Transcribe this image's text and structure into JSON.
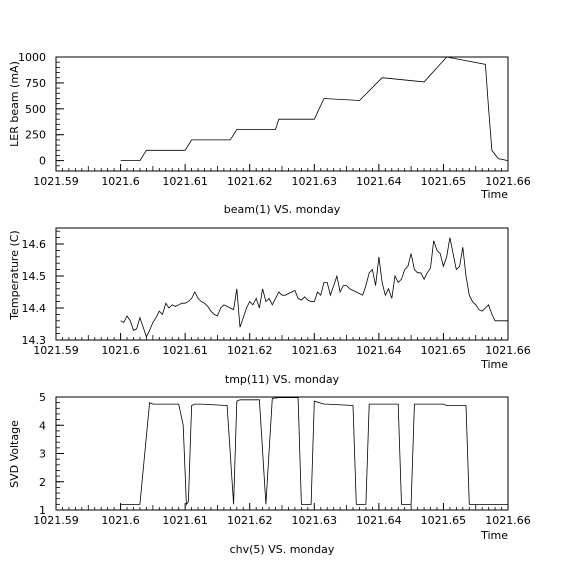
{
  "chart_data": [
    {
      "type": "line",
      "title": "",
      "caption": "beam(1) VS. monday",
      "xlabel": "Time",
      "ylabel": "LER beam (mA)",
      "xlim": [
        1021.59,
        1021.66
      ],
      "ylim": [
        -100,
        1000
      ],
      "xticks": [
        "1021.59",
        "1021.6",
        "1021.61",
        "1021.62",
        "1021.63",
        "1021.64",
        "1021.65",
        "1021.66"
      ],
      "yticks": [
        "0",
        "250",
        "500",
        "750",
        "1000"
      ],
      "series": [
        {
          "x": [
            1021.6,
            1021.603,
            1021.604,
            1021.61,
            1021.611,
            1021.617,
            1021.618,
            1021.624,
            1021.6245,
            1021.63,
            1021.6315,
            1021.637,
            1021.6405,
            1021.647,
            1021.6505,
            1021.6565,
            1021.657,
            1021.6575,
            1021.6585,
            1021.66
          ],
          "y": [
            0,
            0,
            100,
            100,
            200,
            200,
            300,
            300,
            400,
            400,
            600,
            580,
            800,
            760,
            1000,
            930,
            500,
            100,
            20,
            0
          ]
        }
      ]
    },
    {
      "type": "line",
      "title": "",
      "caption": "tmp(11) VS. monday",
      "xlabel": "Time",
      "ylabel": "Temperature (C)",
      "xlim": [
        1021.59,
        1021.66
      ],
      "ylim": [
        14.3,
        14.65
      ],
      "xticks": [
        "1021.59",
        "1021.6",
        "1021.61",
        "1021.62",
        "1021.63",
        "1021.64",
        "1021.65",
        "1021.66"
      ],
      "yticks": [
        "14.3",
        "14.4",
        "14.5",
        "14.6"
      ],
      "series": [
        {
          "x": [
            1021.6,
            1021.6005,
            1021.601,
            1021.6015,
            1021.602,
            1021.6025,
            1021.603,
            1021.6035,
            1021.604,
            1021.6045,
            1021.605,
            1021.6055,
            1021.606,
            1021.6065,
            1021.607,
            1021.6075,
            1021.608,
            1021.6085,
            1021.609,
            1021.6095,
            1021.61,
            1021.6105,
            1021.611,
            1021.6115,
            1021.612,
            1021.6125,
            1021.613,
            1021.6135,
            1021.614,
            1021.6145,
            1021.615,
            1021.6155,
            1021.616,
            1021.6165,
            1021.617,
            1021.6175,
            1021.618,
            1021.6185,
            1021.619,
            1021.6195,
            1021.62,
            1021.6205,
            1021.621,
            1021.6215,
            1021.622,
            1021.6225,
            1021.623,
            1021.6235,
            1021.624,
            1021.6245,
            1021.625,
            1021.6255,
            1021.626,
            1021.6265,
            1021.627,
            1021.6275,
            1021.628,
            1021.6285,
            1021.629,
            1021.6295,
            1021.63,
            1021.6305,
            1021.631,
            1021.6315,
            1021.632,
            1021.6325,
            1021.633,
            1021.6335,
            1021.634,
            1021.6345,
            1021.635,
            1021.6355,
            1021.636,
            1021.6365,
            1021.637,
            1021.6375,
            1021.638,
            1021.6385,
            1021.639,
            1021.6395,
            1021.64,
            1021.6405,
            1021.641,
            1021.6415,
            1021.642,
            1021.6425,
            1021.643,
            1021.6435,
            1021.644,
            1021.6445,
            1021.645,
            1021.6455,
            1021.646,
            1021.6465,
            1021.647,
            1021.6475,
            1021.648,
            1021.6485,
            1021.649,
            1021.6495,
            1021.65,
            1021.6505,
            1021.651,
            1021.6515,
            1021.652,
            1021.6525,
            1021.653,
            1021.6535,
            1021.654,
            1021.6545,
            1021.655,
            1021.6555,
            1021.656,
            1021.6565,
            1021.657,
            1021.6575,
            1021.658,
            1021.6585,
            1021.659,
            1021.6595,
            1021.66
          ],
          "y": [
            14.36,
            14.355,
            14.375,
            14.36,
            14.33,
            14.335,
            14.37,
            14.34,
            14.31,
            14.33,
            14.355,
            14.37,
            14.39,
            14.38,
            14.415,
            14.4,
            14.41,
            14.405,
            14.41,
            14.415,
            14.415,
            14.42,
            14.43,
            14.45,
            14.43,
            14.42,
            14.415,
            14.405,
            14.39,
            14.38,
            14.375,
            14.4,
            14.41,
            14.405,
            14.4,
            14.395,
            14.46,
            14.34,
            14.37,
            14.4,
            14.42,
            14.41,
            14.43,
            14.4,
            14.46,
            14.42,
            14.43,
            14.41,
            14.43,
            14.45,
            14.44,
            14.44,
            14.445,
            14.45,
            14.455,
            14.43,
            14.425,
            14.435,
            14.425,
            14.42,
            14.42,
            14.45,
            14.44,
            14.48,
            14.48,
            14.44,
            14.47,
            14.5,
            14.45,
            14.47,
            14.47,
            14.46,
            14.455,
            14.45,
            14.445,
            14.44,
            14.47,
            14.51,
            14.52,
            14.47,
            14.56,
            14.48,
            14.44,
            14.46,
            14.43,
            14.5,
            14.48,
            14.49,
            14.52,
            14.53,
            14.57,
            14.52,
            14.51,
            14.51,
            14.49,
            14.51,
            14.525,
            14.61,
            14.58,
            14.57,
            14.53,
            14.56,
            14.62,
            14.57,
            14.52,
            14.53,
            14.59,
            14.5,
            14.44,
            14.42,
            14.41,
            14.395,
            14.39,
            14.4,
            14.41,
            14.38,
            14.36,
            14.36,
            14.36,
            14.36,
            14.36
          ],
          "_comment": "placeholder"
        }
      ]
    },
    {
      "type": "line",
      "title": "",
      "caption": "chv(5) VS. monday",
      "xlabel": "Time",
      "ylabel": "SVD Voltage",
      "xlim": [
        1021.59,
        1021.66
      ],
      "ylim": [
        1,
        5
      ],
      "xticks": [
        "1021.59",
        "1021.6",
        "1021.61",
        "1021.62",
        "1021.63",
        "1021.64",
        "1021.65",
        "1021.66"
      ],
      "yticks": [
        "1",
        "2",
        "3",
        "4",
        "5"
      ],
      "series": [
        {
          "x": [
            1021.6,
            1021.603,
            1021.6045,
            1021.605,
            1021.609,
            1021.6097,
            1021.6102,
            1021.6105,
            1021.611,
            1021.6115,
            1021.612,
            1021.6125,
            1021.6165,
            1021.6175,
            1021.618,
            1021.6185,
            1021.6215,
            1021.6225,
            1021.6235,
            1021.6245,
            1021.6275,
            1021.628,
            1021.6295,
            1021.63,
            1021.6315,
            1021.632,
            1021.636,
            1021.6365,
            1021.638,
            1021.6385,
            1021.643,
            1021.6435,
            1021.645,
            1021.6455,
            1021.65,
            1021.6505,
            1021.6535,
            1021.654,
            1021.6555,
            1021.66
          ],
          "y": [
            1.2,
            1.2,
            4.8,
            4.75,
            4.75,
            4.0,
            1.2,
            1.3,
            4.7,
            4.75,
            4.75,
            4.75,
            4.7,
            1.2,
            4.85,
            4.9,
            4.9,
            1.2,
            4.95,
            4.98,
            4.98,
            1.2,
            1.2,
            4.85,
            4.75,
            4.75,
            4.7,
            1.2,
            1.2,
            4.75,
            4.75,
            1.2,
            1.2,
            4.75,
            4.75,
            4.7,
            4.7,
            1.2,
            1.2,
            1.2
          ]
        }
      ]
    }
  ]
}
